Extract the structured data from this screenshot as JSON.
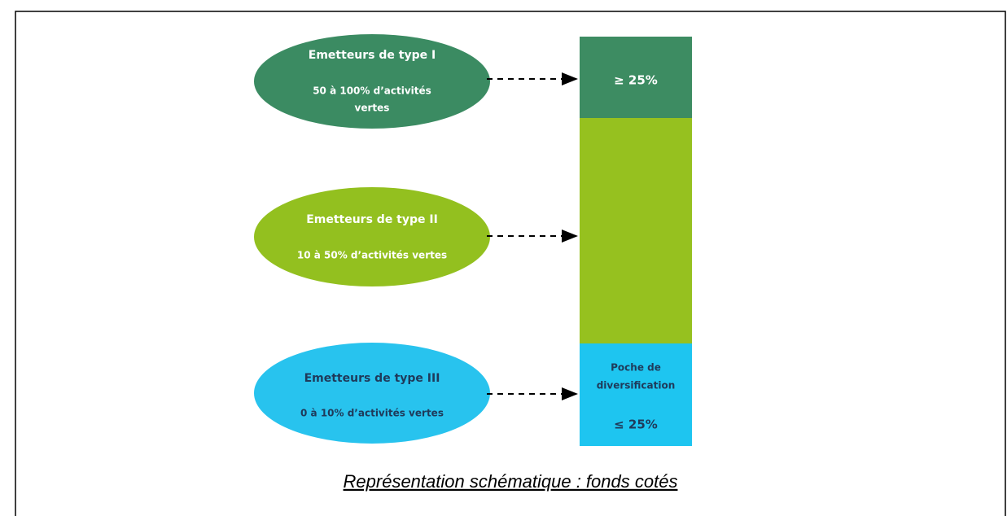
{
  "nodes": [
    {
      "title": "Emetteurs de type I",
      "lines": [
        "50 à 100% d’activités",
        "vertes"
      ]
    },
    {
      "title": "Emetteurs de type II",
      "lines": [
        "10 à 50% d’activités vertes"
      ]
    },
    {
      "title": "Emetteurs de type III",
      "lines": [
        "0 à 10% d’activités vertes"
      ]
    }
  ],
  "bar": {
    "segments": [
      {
        "lines": [
          "≥ 25%"
        ]
      },
      {
        "lines": []
      },
      {
        "lines": [
          "Poche de",
          "diversification",
          "≤ 25%"
        ]
      }
    ]
  },
  "caption": "Représentation schématique : fonds cotés"
}
